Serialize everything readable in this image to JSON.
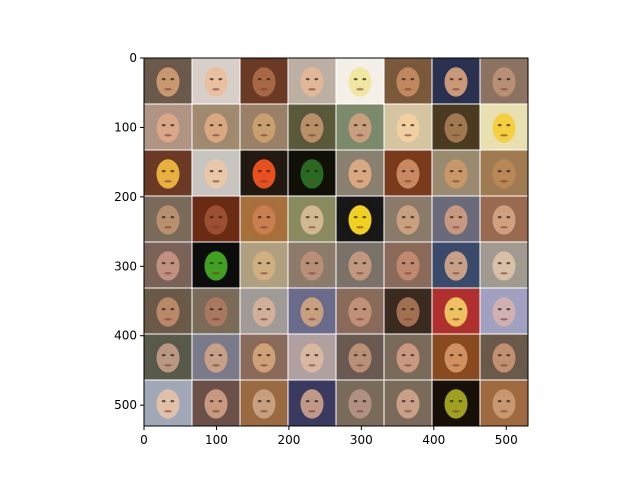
{
  "figure": {
    "xaxis": {
      "lim": [
        0,
        530
      ],
      "ticks": [
        0,
        100,
        200,
        300,
        400,
        500
      ],
      "tick_labels": [
        "0",
        "100",
        "200",
        "300",
        "400",
        "500"
      ]
    },
    "yaxis": {
      "lim": [
        530,
        0
      ],
      "ticks": [
        0,
        100,
        200,
        300,
        400,
        500
      ],
      "tick_labels": [
        "0",
        "100",
        "200",
        "300",
        "400",
        "500"
      ]
    },
    "grid": {
      "rows": 8,
      "cols": 8,
      "description_colors": [
        [
          "#6a5a4a",
          "#d8d0c8",
          "#6a3a24",
          "#bcb0a4",
          "#f4f0e8",
          "#7a5a3a",
          "#2a3250",
          "#8c7260"
        ],
        [
          "#b09484",
          "#a08a70",
          "#9a8066",
          "#5a5a3a",
          "#7a8a6a",
          "#d4c4a0",
          "#4a3a20",
          "#e8e0b0"
        ],
        [
          "#6a3a24",
          "#c8c4c0",
          "#221a10",
          "#101008",
          "#8a8070",
          "#7a3a1c",
          "#9a8a70",
          "#a07a50"
        ],
        [
          "#7a6a5a",
          "#6a2a14",
          "#a8703a",
          "#8a8a60",
          "#181818",
          "#8a7a6a",
          "#6a6a7a",
          "#9a6a50"
        ],
        [
          "#7a6258",
          "#0c0c0c",
          "#b0a080",
          "#8c7a6a",
          "#7a7268",
          "#8a6a5a",
          "#3a4a6a",
          "#a09a90"
        ],
        [
          "#6a5a48",
          "#7a6a58",
          "#a09a98",
          "#6a6a8a",
          "#8a6a5a",
          "#3a2a20",
          "#b03030",
          "#a0a0c0"
        ],
        [
          "#5a5a4a",
          "#7a7a8a",
          "#8a6a5a",
          "#b0a0a0",
          "#6a5a50",
          "#7a6a5a",
          "#8a4a20",
          "#6a5a4a"
        ],
        [
          "#a0a8b8",
          "#6a5048",
          "#9a6a40",
          "#3a3a60",
          "#7a6a5a",
          "#7a6a5a",
          "#181008",
          "#a06a40"
        ]
      ],
      "face_colors": [
        [
          "#c89870",
          "#e8c0a0",
          "#a86848",
          "#e0b898",
          "#f0e8a0",
          "#c08860",
          "#c89878",
          "#b89078"
        ],
        [
          "#d8a888",
          "#d8a880",
          "#c8a070",
          "#b89068",
          "#c8a080",
          "#f0d0a0",
          "#a07850",
          "#f4d040"
        ],
        [
          "#e8b040",
          "#e8c8a8",
          "#e85020",
          "#2a6a20",
          "#d8a880",
          "#c88860",
          "#c89868",
          "#b88858"
        ],
        [
          "#b89070",
          "#9a5030",
          "#c88050",
          "#d0b890",
          "#f0d020",
          "#c8a080",
          "#c89880",
          "#d0a080"
        ],
        [
          "#c09080",
          "#40a020",
          "#d0b080",
          "#b89078",
          "#c09880",
          "#c08870",
          "#c8a088",
          "#d8c0a8"
        ],
        [
          "#b88868",
          "#a87860",
          "#d0b098",
          "#c8a080",
          "#c09078",
          "#a07050",
          "#f0c060",
          "#d0b0b0"
        ],
        [
          "#b89880",
          "#c8a088",
          "#d0a078",
          "#d8b8a0",
          "#b89078",
          "#c89880",
          "#d09060",
          "#c09070"
        ],
        [
          "#e0c0a8",
          "#c89880",
          "#c8a080",
          "#c09888",
          "#b09080",
          "#c8a088",
          "#a0a020",
          "#c89870"
        ]
      ]
    }
  }
}
